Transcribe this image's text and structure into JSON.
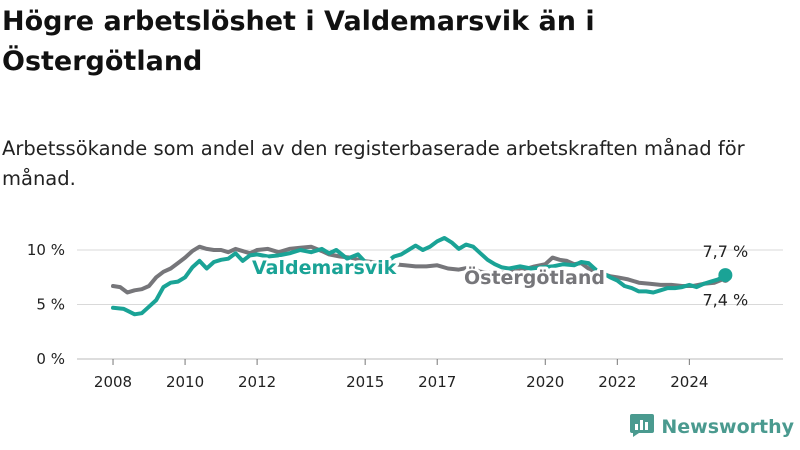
{
  "header": {
    "title": "Högre arbetslöshet i Valdemarsvik än i Östergötland",
    "subtitle": "Arbetssökande som andel av den registerbaserade arbetskraften månad för månad."
  },
  "brand": {
    "name": "Newsworthy",
    "icon": "newsworthy-logo-icon"
  },
  "colors": {
    "valdemarsvik": "#1aa396",
    "ostergotland": "#76767a",
    "grid": "#d9d9d9",
    "brand": "#4a9a8f"
  },
  "chart_data": {
    "type": "line",
    "title": "Högre arbetslöshet i Valdemarsvik än i Östergötland",
    "subtitle": "Arbetssökande som andel av den registerbaserade arbetskraften månad för månad.",
    "ylim": [
      0,
      10
    ],
    "y_ticks": [
      "0 %",
      "5 %",
      "10 %"
    ],
    "y_tick_values": [
      0,
      5,
      10
    ],
    "x_tick_values": [
      2008,
      2010,
      2012,
      2015,
      2017,
      2020,
      2022,
      2024
    ],
    "x_ticks": [
      "2008",
      "2010",
      "2012",
      "2015",
      "2017",
      "2020",
      "2022",
      "2024"
    ],
    "xlim": [
      2007.0,
      2026.6
    ],
    "series": [
      {
        "name": "Valdemarsvik",
        "color": "#1aa396",
        "end_label": "7,7 %",
        "points": [
          [
            2008.0,
            4.7
          ],
          [
            2008.3,
            4.6
          ],
          [
            2008.6,
            4.1
          ],
          [
            2008.8,
            4.2
          ],
          [
            2009.0,
            4.8
          ],
          [
            2009.2,
            5.4
          ],
          [
            2009.4,
            6.6
          ],
          [
            2009.6,
            7.0
          ],
          [
            2009.8,
            7.1
          ],
          [
            2010.0,
            7.5
          ],
          [
            2010.2,
            8.4
          ],
          [
            2010.4,
            9.0
          ],
          [
            2010.6,
            8.3
          ],
          [
            2010.8,
            8.9
          ],
          [
            2011.0,
            9.1
          ],
          [
            2011.2,
            9.2
          ],
          [
            2011.4,
            9.7
          ],
          [
            2011.6,
            9.0
          ],
          [
            2011.8,
            9.5
          ],
          [
            2012.0,
            9.6
          ],
          [
            2012.3,
            9.4
          ],
          [
            2012.6,
            9.5
          ],
          [
            2012.9,
            9.7
          ],
          [
            2013.2,
            10.0
          ],
          [
            2013.5,
            9.8
          ],
          [
            2013.8,
            10.1
          ],
          [
            2014.0,
            9.7
          ],
          [
            2014.2,
            10.0
          ],
          [
            2014.5,
            9.2
          ],
          [
            2014.8,
            9.6
          ],
          [
            2015.0,
            8.9
          ],
          [
            2015.3,
            8.7
          ],
          [
            2015.6,
            8.9
          ],
          [
            2015.8,
            9.4
          ],
          [
            2016.0,
            9.6
          ],
          [
            2016.2,
            10.0
          ],
          [
            2016.4,
            10.4
          ],
          [
            2016.6,
            10.0
          ],
          [
            2016.8,
            10.3
          ],
          [
            2017.0,
            10.8
          ],
          [
            2017.2,
            11.1
          ],
          [
            2017.4,
            10.7
          ],
          [
            2017.6,
            10.1
          ],
          [
            2017.8,
            10.5
          ],
          [
            2018.0,
            10.3
          ],
          [
            2018.2,
            9.7
          ],
          [
            2018.4,
            9.1
          ],
          [
            2018.6,
            8.7
          ],
          [
            2018.8,
            8.4
          ],
          [
            2019.0,
            8.3
          ],
          [
            2019.3,
            8.5
          ],
          [
            2019.6,
            8.3
          ],
          [
            2019.9,
            8.4
          ],
          [
            2020.2,
            8.5
          ],
          [
            2020.5,
            8.7
          ],
          [
            2020.8,
            8.6
          ],
          [
            2021.0,
            8.9
          ],
          [
            2021.2,
            8.8
          ],
          [
            2021.4,
            8.2
          ],
          [
            2021.6,
            7.9
          ],
          [
            2021.8,
            7.5
          ],
          [
            2022.0,
            7.2
          ],
          [
            2022.2,
            6.7
          ],
          [
            2022.4,
            6.5
          ],
          [
            2022.6,
            6.2
          ],
          [
            2022.8,
            6.2
          ],
          [
            2023.0,
            6.1
          ],
          [
            2023.2,
            6.3
          ],
          [
            2023.4,
            6.5
          ],
          [
            2023.6,
            6.5
          ],
          [
            2023.8,
            6.6
          ],
          [
            2024.0,
            6.8
          ],
          [
            2024.2,
            6.6
          ],
          [
            2024.4,
            6.9
          ],
          [
            2024.6,
            7.1
          ],
          [
            2024.8,
            7.3
          ],
          [
            2025.0,
            7.7
          ]
        ]
      },
      {
        "name": "Östergötland",
        "color": "#76767a",
        "end_label": "7,4 %",
        "points": [
          [
            2008.0,
            6.7
          ],
          [
            2008.2,
            6.6
          ],
          [
            2008.4,
            6.1
          ],
          [
            2008.6,
            6.3
          ],
          [
            2008.8,
            6.4
          ],
          [
            2009.0,
            6.7
          ],
          [
            2009.2,
            7.5
          ],
          [
            2009.4,
            8.0
          ],
          [
            2009.6,
            8.3
          ],
          [
            2009.8,
            8.8
          ],
          [
            2010.0,
            9.3
          ],
          [
            2010.2,
            9.9
          ],
          [
            2010.4,
            10.3
          ],
          [
            2010.6,
            10.1
          ],
          [
            2010.8,
            10.0
          ],
          [
            2011.0,
            10.0
          ],
          [
            2011.2,
            9.8
          ],
          [
            2011.4,
            10.1
          ],
          [
            2011.6,
            9.9
          ],
          [
            2011.8,
            9.7
          ],
          [
            2012.0,
            10.0
          ],
          [
            2012.3,
            10.1
          ],
          [
            2012.6,
            9.8
          ],
          [
            2012.9,
            10.1
          ],
          [
            2013.2,
            10.2
          ],
          [
            2013.5,
            10.3
          ],
          [
            2013.8,
            9.9
          ],
          [
            2014.0,
            9.6
          ],
          [
            2014.3,
            9.4
          ],
          [
            2014.6,
            9.3
          ],
          [
            2014.9,
            9.0
          ],
          [
            2015.2,
            8.9
          ],
          [
            2015.5,
            8.8
          ],
          [
            2015.8,
            8.7
          ],
          [
            2016.1,
            8.6
          ],
          [
            2016.4,
            8.5
          ],
          [
            2016.7,
            8.5
          ],
          [
            2017.0,
            8.6
          ],
          [
            2017.3,
            8.3
          ],
          [
            2017.6,
            8.2
          ],
          [
            2017.9,
            8.4
          ],
          [
            2018.2,
            8.0
          ],
          [
            2018.5,
            7.9
          ],
          [
            2018.8,
            7.9
          ],
          [
            2019.1,
            8.0
          ],
          [
            2019.4,
            8.2
          ],
          [
            2019.7,
            8.5
          ],
          [
            2020.0,
            8.7
          ],
          [
            2020.2,
            9.3
          ],
          [
            2020.4,
            9.1
          ],
          [
            2020.6,
            9.0
          ],
          [
            2020.8,
            8.7
          ],
          [
            2021.0,
            8.8
          ],
          [
            2021.2,
            8.3
          ],
          [
            2021.4,
            8.0
          ],
          [
            2021.6,
            7.8
          ],
          [
            2021.8,
            7.6
          ],
          [
            2022.0,
            7.5
          ],
          [
            2022.3,
            7.3
          ],
          [
            2022.6,
            7.0
          ],
          [
            2022.9,
            6.9
          ],
          [
            2023.2,
            6.8
          ],
          [
            2023.5,
            6.8
          ],
          [
            2023.8,
            6.7
          ],
          [
            2024.1,
            6.7
          ],
          [
            2024.4,
            6.9
          ],
          [
            2024.7,
            7.0
          ],
          [
            2025.0,
            7.4
          ]
        ]
      }
    ]
  }
}
